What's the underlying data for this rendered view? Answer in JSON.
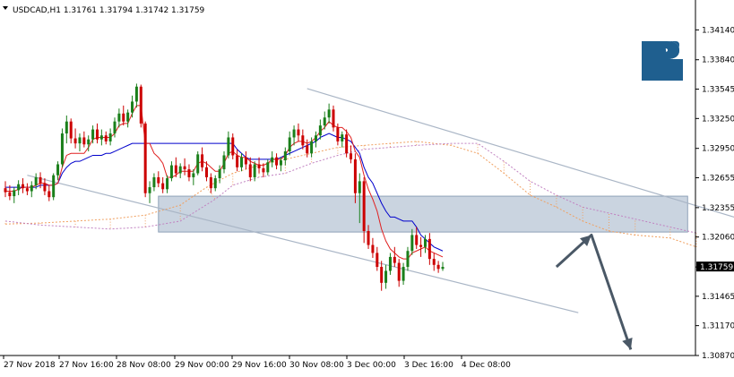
{
  "header": {
    "symbol": "USDCAD,H1",
    "open": "1.31761",
    "high": "1.31794",
    "low": "1.31742",
    "close": "1.31759",
    "text": "USDCAD,H1  1.31761  1.31794  1.31742  1.31759"
  },
  "current_price_label": "1.31759",
  "logo": {
    "name": "broker-logo-R",
    "color": "#1f5f8f"
  },
  "colors": {
    "bull_candle": "#1a7f1a",
    "bear_candle": "#cc0000",
    "tenkan_line": "#e02020",
    "kijun_line": "#0000cc",
    "cloud_border": "#f0a060",
    "cloud_border_alt": "#c080c0",
    "channel_line": "#aab6c6",
    "zone_fill": "#b8c6d6",
    "arrow": "#4a5866",
    "price_tag_bg": "#000000"
  },
  "chart_data": {
    "type": "candlestick",
    "title": "USDCAD,H1",
    "ohlc_header": {
      "open": 1.31761,
      "high": 1.31794,
      "low": 1.31742,
      "close": 1.31759
    },
    "y_axis": {
      "min": 1.3087,
      "max": 1.3444,
      "ticks": [
        1.3414,
        1.3384,
        1.33545,
        1.3325,
        1.3295,
        1.32655,
        1.32355,
        1.3206,
        1.31759,
        1.31465,
        1.3117,
        1.3087
      ],
      "tick_labels": [
        "1.34140",
        "1.33840",
        "1.33545",
        "1.33250",
        "1.32950",
        "1.32655",
        "1.32355",
        "1.32060",
        "1.31759",
        "1.31465",
        "1.31170",
        "1.30870"
      ]
    },
    "x_axis": {
      "tick_labels": [
        "27 Nov 2018",
        "27 Nov 16:00",
        "28 Nov 08:00",
        "29 Nov 00:00",
        "29 Nov 16:00",
        "30 Nov 08:00",
        "3 Dec 00:00",
        "3 Dec 16:00",
        "4 Dec 08:00"
      ]
    },
    "candles": [
      [
        1.3255,
        1.3262,
        1.3246,
        1.3251
      ],
      [
        1.3251,
        1.3258,
        1.3243,
        1.3247
      ],
      [
        1.3247,
        1.3256,
        1.324,
        1.3253
      ],
      [
        1.3253,
        1.3263,
        1.3248,
        1.3259
      ],
      [
        1.3259,
        1.3265,
        1.325,
        1.3255
      ],
      [
        1.3255,
        1.326,
        1.3248,
        1.3252
      ],
      [
        1.3252,
        1.3262,
        1.3246,
        1.3258
      ],
      [
        1.3258,
        1.327,
        1.3254,
        1.3266
      ],
      [
        1.3266,
        1.3271,
        1.3255,
        1.326
      ],
      [
        1.326,
        1.3265,
        1.3248,
        1.3252
      ],
      [
        1.3252,
        1.3258,
        1.3242,
        1.3246
      ],
      [
        1.3246,
        1.327,
        1.3243,
        1.3268
      ],
      [
        1.3268,
        1.3282,
        1.3263,
        1.3279
      ],
      [
        1.3279,
        1.3315,
        1.3276,
        1.331
      ],
      [
        1.331,
        1.3328,
        1.33,
        1.3322
      ],
      [
        1.3322,
        1.3325,
        1.33,
        1.3305
      ],
      [
        1.3305,
        1.3315,
        1.3295,
        1.33
      ],
      [
        1.33,
        1.331,
        1.3292,
        1.3306
      ],
      [
        1.3306,
        1.3312,
        1.3296,
        1.3299
      ],
      [
        1.3299,
        1.3308,
        1.3292,
        1.3304
      ],
      [
        1.3304,
        1.3318,
        1.33,
        1.3314
      ],
      [
        1.3314,
        1.332,
        1.33,
        1.3304
      ],
      [
        1.3304,
        1.3314,
        1.3298,
        1.3308
      ],
      [
        1.3308,
        1.3312,
        1.3299,
        1.3302
      ],
      [
        1.3302,
        1.3315,
        1.3298,
        1.331
      ],
      [
        1.331,
        1.3326,
        1.3306,
        1.3322
      ],
      [
        1.3322,
        1.3335,
        1.3316,
        1.333
      ],
      [
        1.333,
        1.3338,
        1.3318,
        1.3322
      ],
      [
        1.3322,
        1.3334,
        1.3316,
        1.3331
      ],
      [
        1.3331,
        1.3348,
        1.3326,
        1.3342
      ],
      [
        1.3342,
        1.336,
        1.3336,
        1.3357
      ],
      [
        1.3357,
        1.3359,
        1.3316,
        1.332
      ],
      [
        1.332,
        1.3322,
        1.3246,
        1.325
      ],
      [
        1.325,
        1.3262,
        1.324,
        1.3256
      ],
      [
        1.3256,
        1.327,
        1.3252,
        1.3266
      ],
      [
        1.3266,
        1.3272,
        1.3256,
        1.326
      ],
      [
        1.326,
        1.3266,
        1.325,
        1.3254
      ],
      [
        1.3254,
        1.3268,
        1.325,
        1.3265
      ],
      [
        1.3265,
        1.3282,
        1.3262,
        1.3278
      ],
      [
        1.3278,
        1.3286,
        1.3266,
        1.327
      ],
      [
        1.327,
        1.328,
        1.3265,
        1.3277
      ],
      [
        1.3277,
        1.3285,
        1.3268,
        1.3274
      ],
      [
        1.3274,
        1.3279,
        1.3262,
        1.3266
      ],
      [
        1.3266,
        1.3274,
        1.3258,
        1.327
      ],
      [
        1.327,
        1.3292,
        1.3268,
        1.3289
      ],
      [
        1.3289,
        1.3296,
        1.3272,
        1.3276
      ],
      [
        1.3276,
        1.3282,
        1.3262,
        1.3266
      ],
      [
        1.3266,
        1.327,
        1.325,
        1.3255
      ],
      [
        1.3255,
        1.3268,
        1.3252,
        1.3265
      ],
      [
        1.3265,
        1.3278,
        1.326,
        1.3274
      ],
      [
        1.3274,
        1.3292,
        1.327,
        1.3288
      ],
      [
        1.3288,
        1.3312,
        1.3285,
        1.3306
      ],
      [
        1.3306,
        1.331,
        1.3284,
        1.3288
      ],
      [
        1.3288,
        1.3294,
        1.3272,
        1.3276
      ],
      [
        1.3276,
        1.329,
        1.3272,
        1.3286
      ],
      [
        1.3286,
        1.3292,
        1.3274,
        1.3279
      ],
      [
        1.3279,
        1.3286,
        1.3262,
        1.3266
      ],
      [
        1.3266,
        1.3282,
        1.3262,
        1.3279
      ],
      [
        1.3279,
        1.3286,
        1.327,
        1.3275
      ],
      [
        1.3275,
        1.328,
        1.3266,
        1.3271
      ],
      [
        1.3271,
        1.3284,
        1.3268,
        1.3281
      ],
      [
        1.3281,
        1.3292,
        1.3276,
        1.3286
      ],
      [
        1.3286,
        1.329,
        1.3274,
        1.3278
      ],
      [
        1.3278,
        1.3286,
        1.3272,
        1.3283
      ],
      [
        1.3283,
        1.3296,
        1.3278,
        1.3292
      ],
      [
        1.3292,
        1.3312,
        1.3288,
        1.3306
      ],
      [
        1.3306,
        1.3318,
        1.3298,
        1.3314
      ],
      [
        1.3314,
        1.332,
        1.3302,
        1.3308
      ],
      [
        1.3308,
        1.3314,
        1.3294,
        1.3298
      ],
      [
        1.3298,
        1.3304,
        1.3286,
        1.329
      ],
      [
        1.329,
        1.3306,
        1.3286,
        1.3302
      ],
      [
        1.3302,
        1.3312,
        1.3296,
        1.3308
      ],
      [
        1.3308,
        1.3324,
        1.3304,
        1.3318
      ],
      [
        1.3318,
        1.3332,
        1.3314,
        1.3326
      ],
      [
        1.3326,
        1.334,
        1.332,
        1.3334
      ],
      [
        1.3334,
        1.3338,
        1.3312,
        1.3316
      ],
      [
        1.3316,
        1.332,
        1.3298,
        1.3302
      ],
      [
        1.3302,
        1.3312,
        1.3296,
        1.3309
      ],
      [
        1.3309,
        1.3314,
        1.3286,
        1.329
      ],
      [
        1.329,
        1.3298,
        1.328,
        1.3284
      ],
      [
        1.3284,
        1.329,
        1.324,
        1.325
      ],
      [
        1.325,
        1.327,
        1.322,
        1.3262
      ],
      [
        1.3262,
        1.3266,
        1.32,
        1.3212
      ],
      [
        1.3212,
        1.3218,
        1.3194,
        1.3198
      ],
      [
        1.3198,
        1.3205,
        1.3185,
        1.319
      ],
      [
        1.319,
        1.3196,
        1.3172,
        1.3176
      ],
      [
        1.3176,
        1.3182,
        1.3152,
        1.316
      ],
      [
        1.316,
        1.3178,
        1.3154,
        1.3172
      ],
      [
        1.3172,
        1.319,
        1.3168,
        1.3186
      ],
      [
        1.3186,
        1.3196,
        1.3176,
        1.318
      ],
      [
        1.318,
        1.3184,
        1.3156,
        1.3162
      ],
      [
        1.3162,
        1.318,
        1.3158,
        1.3176
      ],
      [
        1.3176,
        1.3196,
        1.3172,
        1.3192
      ],
      [
        1.3192,
        1.3214,
        1.3188,
        1.3208
      ],
      [
        1.3208,
        1.3216,
        1.3194,
        1.3198
      ],
      [
        1.3198,
        1.3206,
        1.3186,
        1.3196
      ],
      [
        1.3196,
        1.3208,
        1.319,
        1.3204
      ],
      [
        1.3204,
        1.321,
        1.3178,
        1.3184
      ],
      [
        1.3184,
        1.319,
        1.3172,
        1.3178
      ],
      [
        1.3178,
        1.3182,
        1.317,
        1.3174
      ],
      [
        1.3174,
        1.3181,
        1.3172,
        1.3176
      ]
    ],
    "tenkan": [
      1.3252,
      1.3252,
      1.3252,
      1.3254,
      1.3256,
      1.3256,
      1.3256,
      1.3258,
      1.326,
      1.326,
      1.3258,
      1.3258,
      1.326,
      1.3276,
      1.3288,
      1.329,
      1.329,
      1.329,
      1.329,
      1.3296,
      1.3304,
      1.3306,
      1.3306,
      1.3306,
      1.3306,
      1.331,
      1.3318,
      1.332,
      1.332,
      1.333,
      1.3338,
      1.3338,
      1.33,
      1.33,
      1.329,
      1.3286,
      1.328,
      1.3266,
      1.3266,
      1.3268,
      1.3272,
      1.3272,
      1.3272,
      1.3272,
      1.328,
      1.3282,
      1.328,
      1.3276,
      1.3272,
      1.3272,
      1.328,
      1.329,
      1.3292,
      1.3288,
      1.3286,
      1.3286,
      1.3282,
      1.328,
      1.3278,
      1.3278,
      1.328,
      1.3284,
      1.3284,
      1.3284,
      1.3288,
      1.3296,
      1.33,
      1.3302,
      1.3302,
      1.33,
      1.3302,
      1.3306,
      1.3312,
      1.3316,
      1.3322,
      1.3318,
      1.3316,
      1.3316,
      1.3312,
      1.3306,
      1.3292,
      1.3286,
      1.3268,
      1.3254,
      1.3244,
      1.3232,
      1.3214,
      1.3202,
      1.3194,
      1.319,
      1.3186,
      1.3184,
      1.3184,
      1.319,
      1.3192,
      1.3194,
      1.3196,
      1.3192,
      1.319,
      1.3188,
      1.3186
    ],
    "kijun": [
      1.3256,
      1.3256,
      1.3256,
      1.3256,
      1.3256,
      1.3256,
      1.3256,
      1.3256,
      1.3258,
      1.3258,
      1.3258,
      1.3258,
      1.326,
      1.327,
      1.3276,
      1.328,
      1.3282,
      1.3282,
      1.3284,
      1.3286,
      1.3288,
      1.3288,
      1.3288,
      1.329,
      1.329,
      1.3292,
      1.3294,
      1.3296,
      1.3298,
      1.33,
      1.33,
      1.33,
      1.33,
      1.33,
      1.33,
      1.33,
      1.33,
      1.33,
      1.33,
      1.33,
      1.33,
      1.33,
      1.33,
      1.33,
      1.33,
      1.33,
      1.33,
      1.33,
      1.33,
      1.33,
      1.33,
      1.33,
      1.33,
      1.3294,
      1.329,
      1.3286,
      1.3284,
      1.3284,
      1.3284,
      1.3284,
      1.3284,
      1.3284,
      1.3284,
      1.3286,
      1.3288,
      1.329,
      1.3292,
      1.3294,
      1.3296,
      1.3298,
      1.33,
      1.3302,
      1.3306,
      1.3308,
      1.331,
      1.3308,
      1.3306,
      1.3306,
      1.3304,
      1.3302,
      1.3296,
      1.329,
      1.3276,
      1.3266,
      1.326,
      1.325,
      1.324,
      1.3232,
      1.3226,
      1.3226,
      1.3224,
      1.3222,
      1.3222,
      1.3222,
      1.3216,
      1.3208,
      1.3204,
      1.32,
      1.3196,
      1.3194,
      1.3192
    ],
    "cloud_a": [
      [
        0,
        1.3219
      ],
      [
        8,
        1.322
      ],
      [
        16,
        1.3222
      ],
      [
        24,
        1.3224
      ],
      [
        32,
        1.3228
      ],
      [
        40,
        1.3238
      ],
      [
        46,
        1.3256
      ],
      [
        52,
        1.327
      ],
      [
        58,
        1.3278
      ],
      [
        64,
        1.3284
      ],
      [
        70,
        1.329
      ],
      [
        76,
        1.3296
      ],
      [
        82,
        1.3298
      ],
      [
        88,
        1.33
      ],
      [
        94,
        1.3302
      ],
      [
        102,
        1.3298
      ],
      [
        108,
        1.329
      ],
      [
        114,
        1.327
      ],
      [
        120,
        1.3248
      ],
      [
        126,
        1.3236
      ],
      [
        132,
        1.3222
      ],
      [
        138,
        1.3212
      ],
      [
        144,
        1.3208
      ],
      [
        152,
        1.3205
      ],
      [
        158,
        1.3196
      ]
    ],
    "cloud_b": [
      [
        0,
        1.3222
      ],
      [
        8,
        1.3218
      ],
      [
        16,
        1.3216
      ],
      [
        24,
        1.3214
      ],
      [
        32,
        1.3216
      ],
      [
        40,
        1.3222
      ],
      [
        48,
        1.3244
      ],
      [
        52,
        1.3258
      ],
      [
        58,
        1.3266
      ],
      [
        64,
        1.327
      ],
      [
        70,
        1.328
      ],
      [
        76,
        1.3288
      ],
      [
        82,
        1.3294
      ],
      [
        88,
        1.3296
      ],
      [
        94,
        1.3298
      ],
      [
        102,
        1.33
      ],
      [
        108,
        1.33
      ],
      [
        114,
        1.3282
      ],
      [
        120,
        1.3262
      ],
      [
        126,
        1.3248
      ],
      [
        132,
        1.3236
      ],
      [
        138,
        1.323
      ],
      [
        144,
        1.3224
      ],
      [
        152,
        1.3216
      ],
      [
        158,
        1.321
      ]
    ],
    "zone": {
      "x_start": 35,
      "x_end": 156,
      "y_low": 1.3211,
      "y_high": 1.3247
    },
    "channel_upper": [
      [
        69,
        1.3355
      ],
      [
        184,
        1.3203
      ]
    ],
    "channel_lower": [
      [
        5,
        1.3268
      ],
      [
        131,
        1.313
      ]
    ],
    "forecast_path": [
      [
        126,
        1.3176
      ],
      [
        134,
        1.3208
      ],
      [
        143,
        1.3093
      ]
    ]
  }
}
